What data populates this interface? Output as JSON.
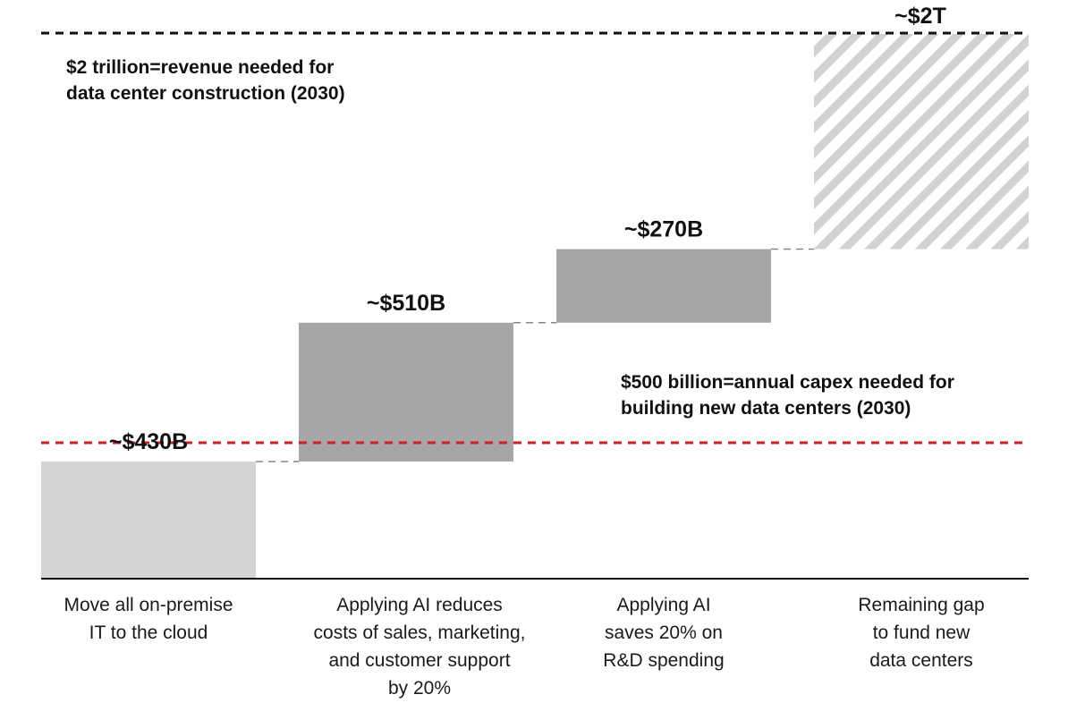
{
  "chart_data": {
    "type": "bar",
    "subtype": "waterfall",
    "unit": "USD billions",
    "categories": [
      [
        "Move all on-premise",
        "IT to the cloud"
      ],
      [
        "Applying AI reduces",
        "costs of sales, marketing,",
        "and customer support",
        "by 20%"
      ],
      [
        "Applying AI",
        "saves 20% on",
        "R&D spending"
      ],
      [
        "Remaining gap",
        "to fund new",
        "data centers"
      ]
    ],
    "values": [
      430,
      510,
      270,
      790
    ],
    "value_labels": [
      "~$430B",
      "~$510B",
      "~$270B",
      "~$2T"
    ],
    "total": 2000,
    "bar_styles": [
      "light",
      "dark",
      "dark",
      "hatched"
    ],
    "reference_lines": [
      {
        "value": 2000,
        "color": "#111111",
        "style": "dashed",
        "text": [
          "$2 trillion=revenue needed for",
          "data center construction (2030)"
        ]
      },
      {
        "value": 500,
        "color": "#cc1f26",
        "style": "dashed",
        "text": [
          "$500 billion=annual capex needed for",
          "building new data centers (2030)"
        ]
      }
    ],
    "colors": {
      "light": "#d4d4d4",
      "dark": "#a6a6a6",
      "hatch": "#d2d2d2",
      "red": "#cc1f26",
      "axis": "#111111",
      "connector": "#888888"
    },
    "grid": false,
    "legend": "none"
  }
}
